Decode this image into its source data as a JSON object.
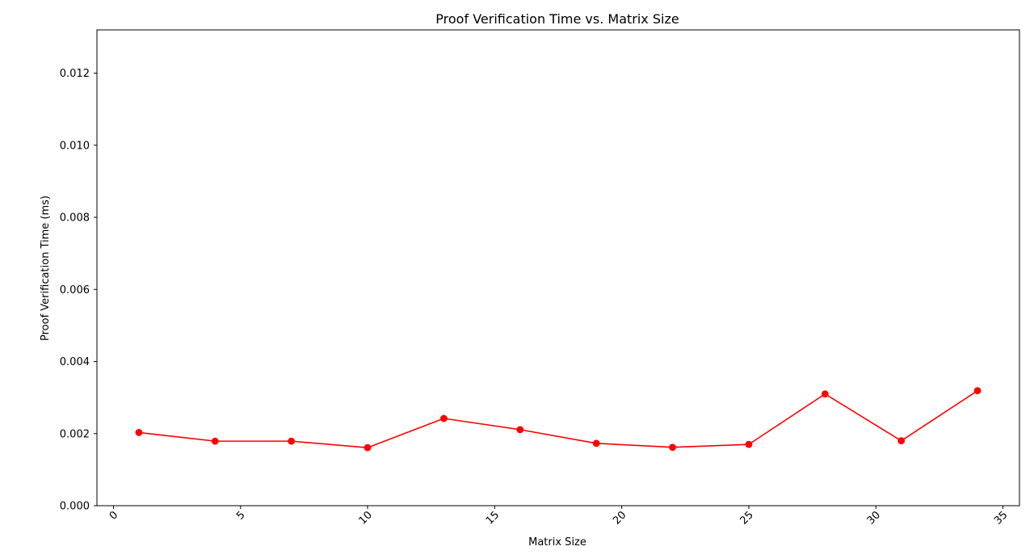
{
  "chart_data": {
    "type": "line",
    "title": "Proof Verification Time vs. Matrix Size",
    "xlabel": "Matrix Size",
    "ylabel": "Proof Verification Time (ms)",
    "xlim": [
      -0.65,
      35.65
    ],
    "ylim": [
      0,
      0.0132
    ],
    "x_ticks": [
      0,
      5,
      10,
      15,
      20,
      25,
      30,
      35
    ],
    "y_ticks": [
      "0.000",
      "0.002",
      "0.004",
      "0.006",
      "0.008",
      "0.010",
      "0.012"
    ],
    "x_tick_rotation_deg": 45,
    "grid": false,
    "series": [
      {
        "color": "#ff0000",
        "marker": "circle",
        "x": [
          1,
          4,
          7,
          10,
          13,
          16,
          19,
          22,
          25,
          28,
          31,
          34
        ],
        "values": [
          0.00203,
          0.00179,
          0.00179,
          0.00161,
          0.00242,
          0.00211,
          0.00173,
          0.00162,
          0.0017,
          0.0031,
          0.0018,
          0.00319
        ]
      }
    ]
  }
}
